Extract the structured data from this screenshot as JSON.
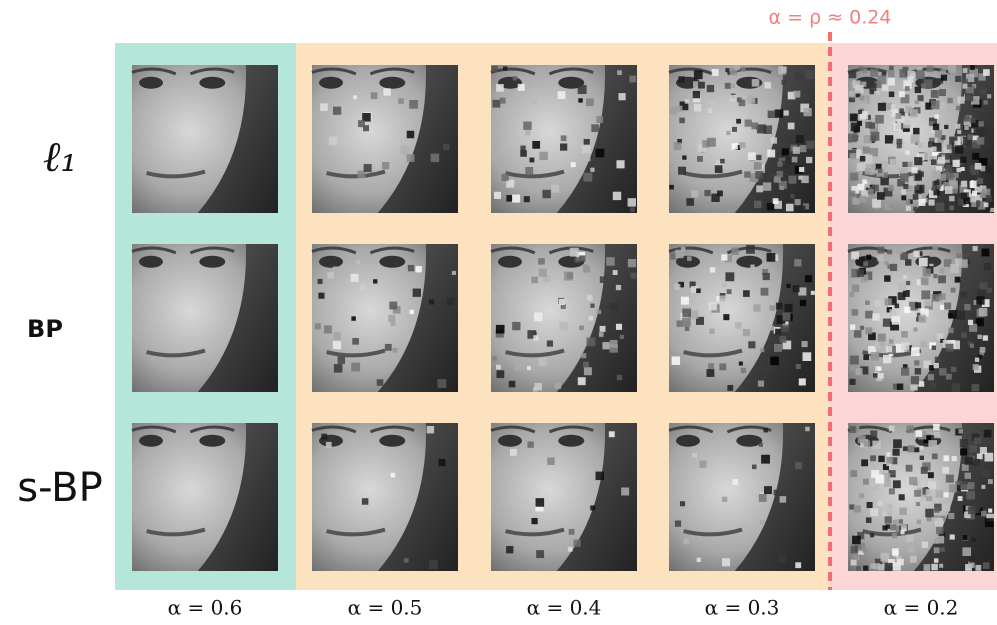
{
  "figure": {
    "row_labels": [
      "ℓ₁",
      "BP",
      "s-BP"
    ],
    "column_labels": [
      "α = 0.6",
      "α = 0.5",
      "α = 0.4",
      "α = 0.3",
      "α = 0.2"
    ],
    "threshold_label": "α = ρ ≈ 0.24"
  }
}
